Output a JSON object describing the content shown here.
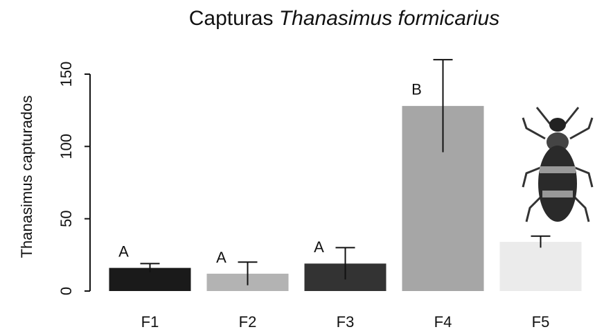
{
  "chart_data": {
    "type": "bar",
    "title": "Capturas",
    "title_italic": "Thanasimus formicarius",
    "y_label": "Thanasimus capturados",
    "categories": [
      "F1",
      "F2",
      "F3",
      "F4",
      "F5"
    ],
    "values": [
      16,
      12,
      19,
      128,
      34
    ],
    "errors": [
      3,
      8,
      11,
      32,
      4
    ],
    "annotations": [
      "A",
      "A",
      "A",
      "B",
      null
    ],
    "colors": [
      "#1a1a1a",
      "#b3b3b3",
      "#333333",
      "#a6a6a6",
      "#ebebeb"
    ],
    "ylim": [
      0,
      150
    ],
    "yticks": [
      0,
      50,
      100,
      150
    ]
  }
}
